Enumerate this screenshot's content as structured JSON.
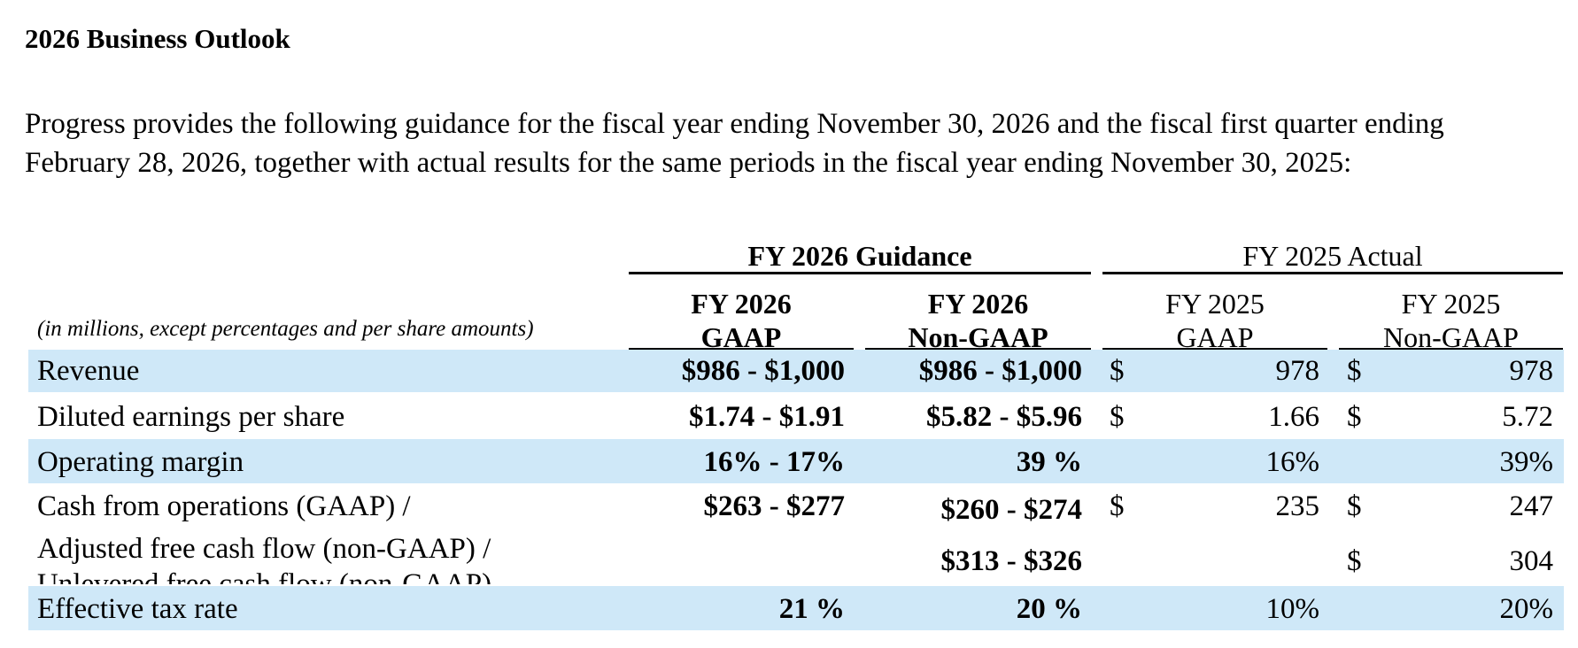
{
  "title": "2026 Business Outlook",
  "intro_lines": [
    "Progress provides the following guidance for the fiscal year ending November 30, 2026 and the fiscal first quarter ending",
    "February 28, 2026, together with actual results for the same periods in the fiscal year ending November 30, 2025:"
  ],
  "table": {
    "group_guidance": "FY 2026 Guidance",
    "group_actual": "FY 2025 Actual",
    "units_note": "(in millions, except percentages and per share amounts)",
    "columns": [
      {
        "line1": "FY 2026",
        "line2": "GAAP"
      },
      {
        "line1": "FY 2026",
        "line2": "Non-GAAP"
      },
      {
        "line1": "FY 2025",
        "line2": "GAAP"
      },
      {
        "line1": "FY 2025",
        "line2": "Non-GAAP"
      }
    ],
    "rows": [
      {
        "label": "Revenue",
        "g2026": "$986 - $1,000",
        "ng2026": "$986 - $1,000",
        "gaap2025_sym": "$",
        "gaap2025": "978",
        "ng2025_sym": "$",
        "ng2025": "978"
      },
      {
        "label": "Diluted earnings per share",
        "g2026": "$1.74 - $1.91",
        "ng2026": "$5.82 - $5.96",
        "gaap2025_sym": "$",
        "gaap2025": "1.66",
        "ng2025_sym": "$",
        "ng2025": "5.72"
      },
      {
        "label": "Operating margin",
        "g2026": "16% - 17%",
        "ng2026": "39 %",
        "gaap2025_sym": "",
        "gaap2025": "16%",
        "ng2025_sym": "",
        "ng2025": "39%"
      },
      {
        "label": "Cash from operations (GAAP) /",
        "g2026": "$263 - $277",
        "ng2026": "$260 - $274",
        "gaap2025_sym": "$",
        "gaap2025": "235",
        "ng2025_sym": "$",
        "ng2025": "247"
      },
      {
        "label_line1": "Adjusted free cash flow (non-GAAP) /",
        "label_line2": "Unlevered free cash flow (non-GAAP)",
        "g2026": "",
        "ng2026": "$313 - $326",
        "gaap2025_sym": "",
        "gaap2025": "",
        "ng2025_sym": "$",
        "ng2025": "304"
      },
      {
        "label": "Effective tax rate",
        "g2026": "21 %",
        "ng2026": "20 %",
        "gaap2025_sym": "",
        "gaap2025": "10%",
        "ng2025_sym": "",
        "ng2025": "20%"
      }
    ]
  },
  "colors": {
    "row_shade": "#cfe8f8",
    "text": "#000000"
  }
}
